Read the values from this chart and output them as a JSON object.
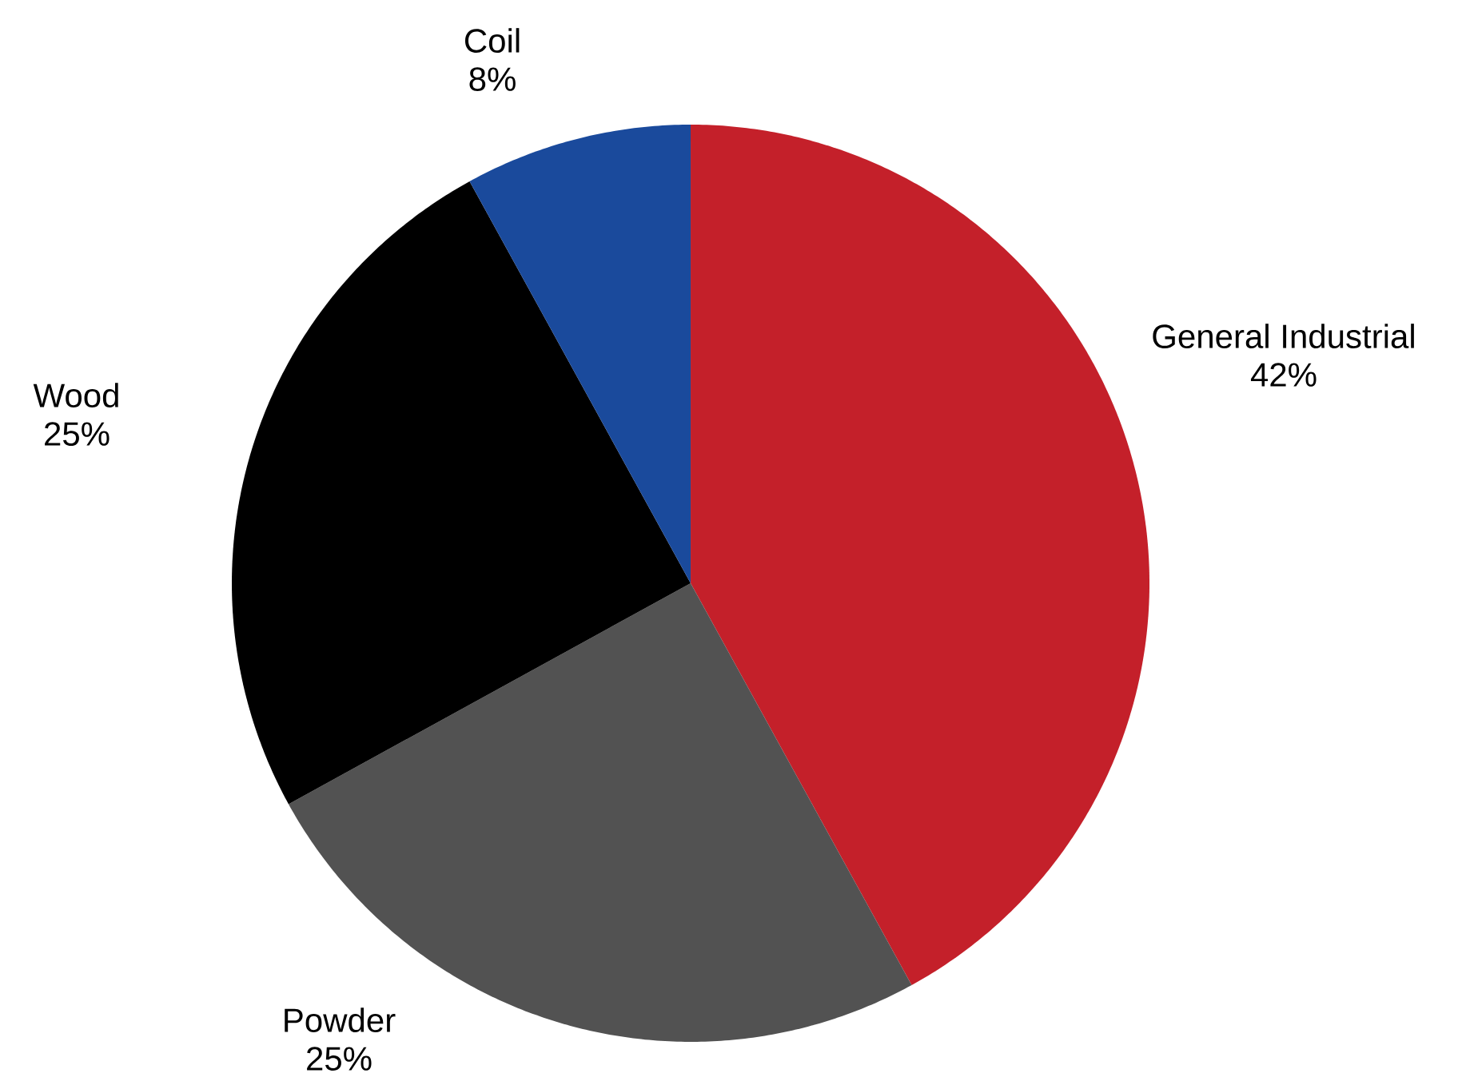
{
  "chart_data": {
    "type": "pie",
    "categories": [
      "General Industrial",
      "Powder",
      "Wood",
      "Coil"
    ],
    "values": [
      42,
      25,
      25,
      8
    ],
    "colors": [
      "#c4202a",
      "#525252",
      "#000000",
      "#1a4a9c"
    ],
    "value_labels": [
      "42%",
      "25%",
      "25%",
      "8%"
    ]
  }
}
